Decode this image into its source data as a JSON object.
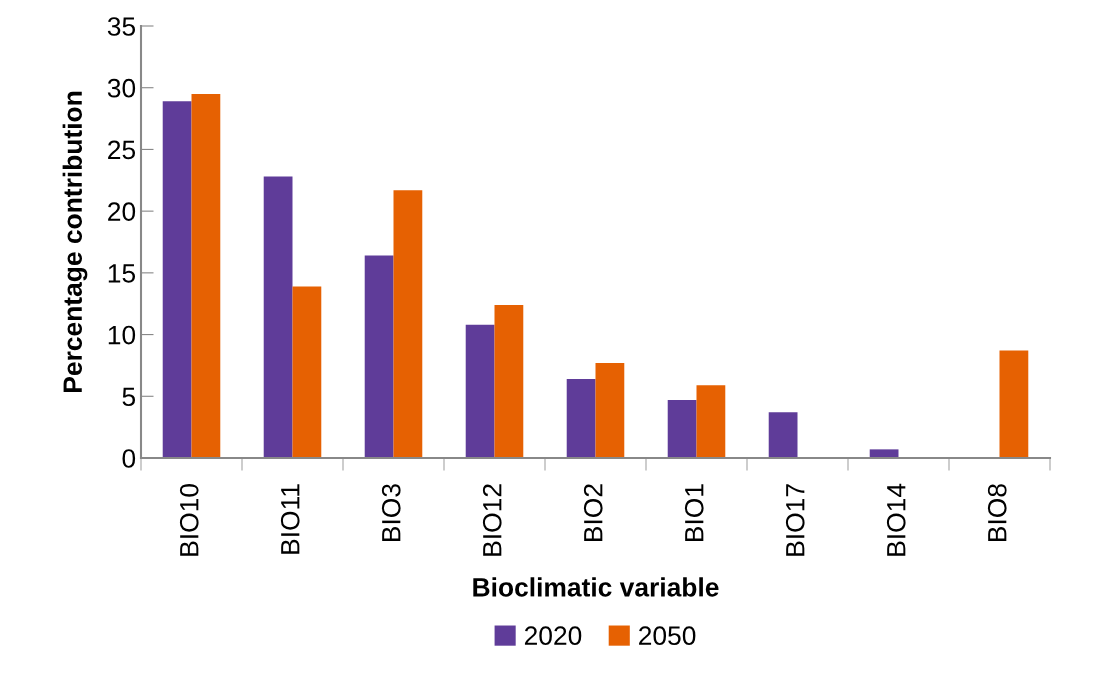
{
  "chart_data": {
    "type": "bar",
    "xlabel": "Bioclimatic variable",
    "ylabel": "Percentage contribution",
    "categories": [
      "BIO10",
      "BIO11",
      "BIO3",
      "BIO12",
      "BIO2",
      "BIO1",
      "BIO17",
      "BIO14",
      "BIO8"
    ],
    "series": [
      {
        "name": "2020",
        "color": "#5f3c99",
        "values": [
          28.9,
          22.8,
          16.4,
          10.8,
          6.4,
          4.7,
          3.7,
          0.7,
          null
        ]
      },
      {
        "name": "2050",
        "color": "#e66102",
        "values": [
          29.5,
          13.9,
          21.7,
          12.4,
          7.7,
          5.9,
          null,
          null,
          8.7
        ]
      }
    ],
    "ylim": [
      0,
      35
    ],
    "yticks": [
      0,
      5,
      10,
      15,
      20,
      25,
      30,
      35
    ],
    "grid": false,
    "legend": "bottom"
  }
}
